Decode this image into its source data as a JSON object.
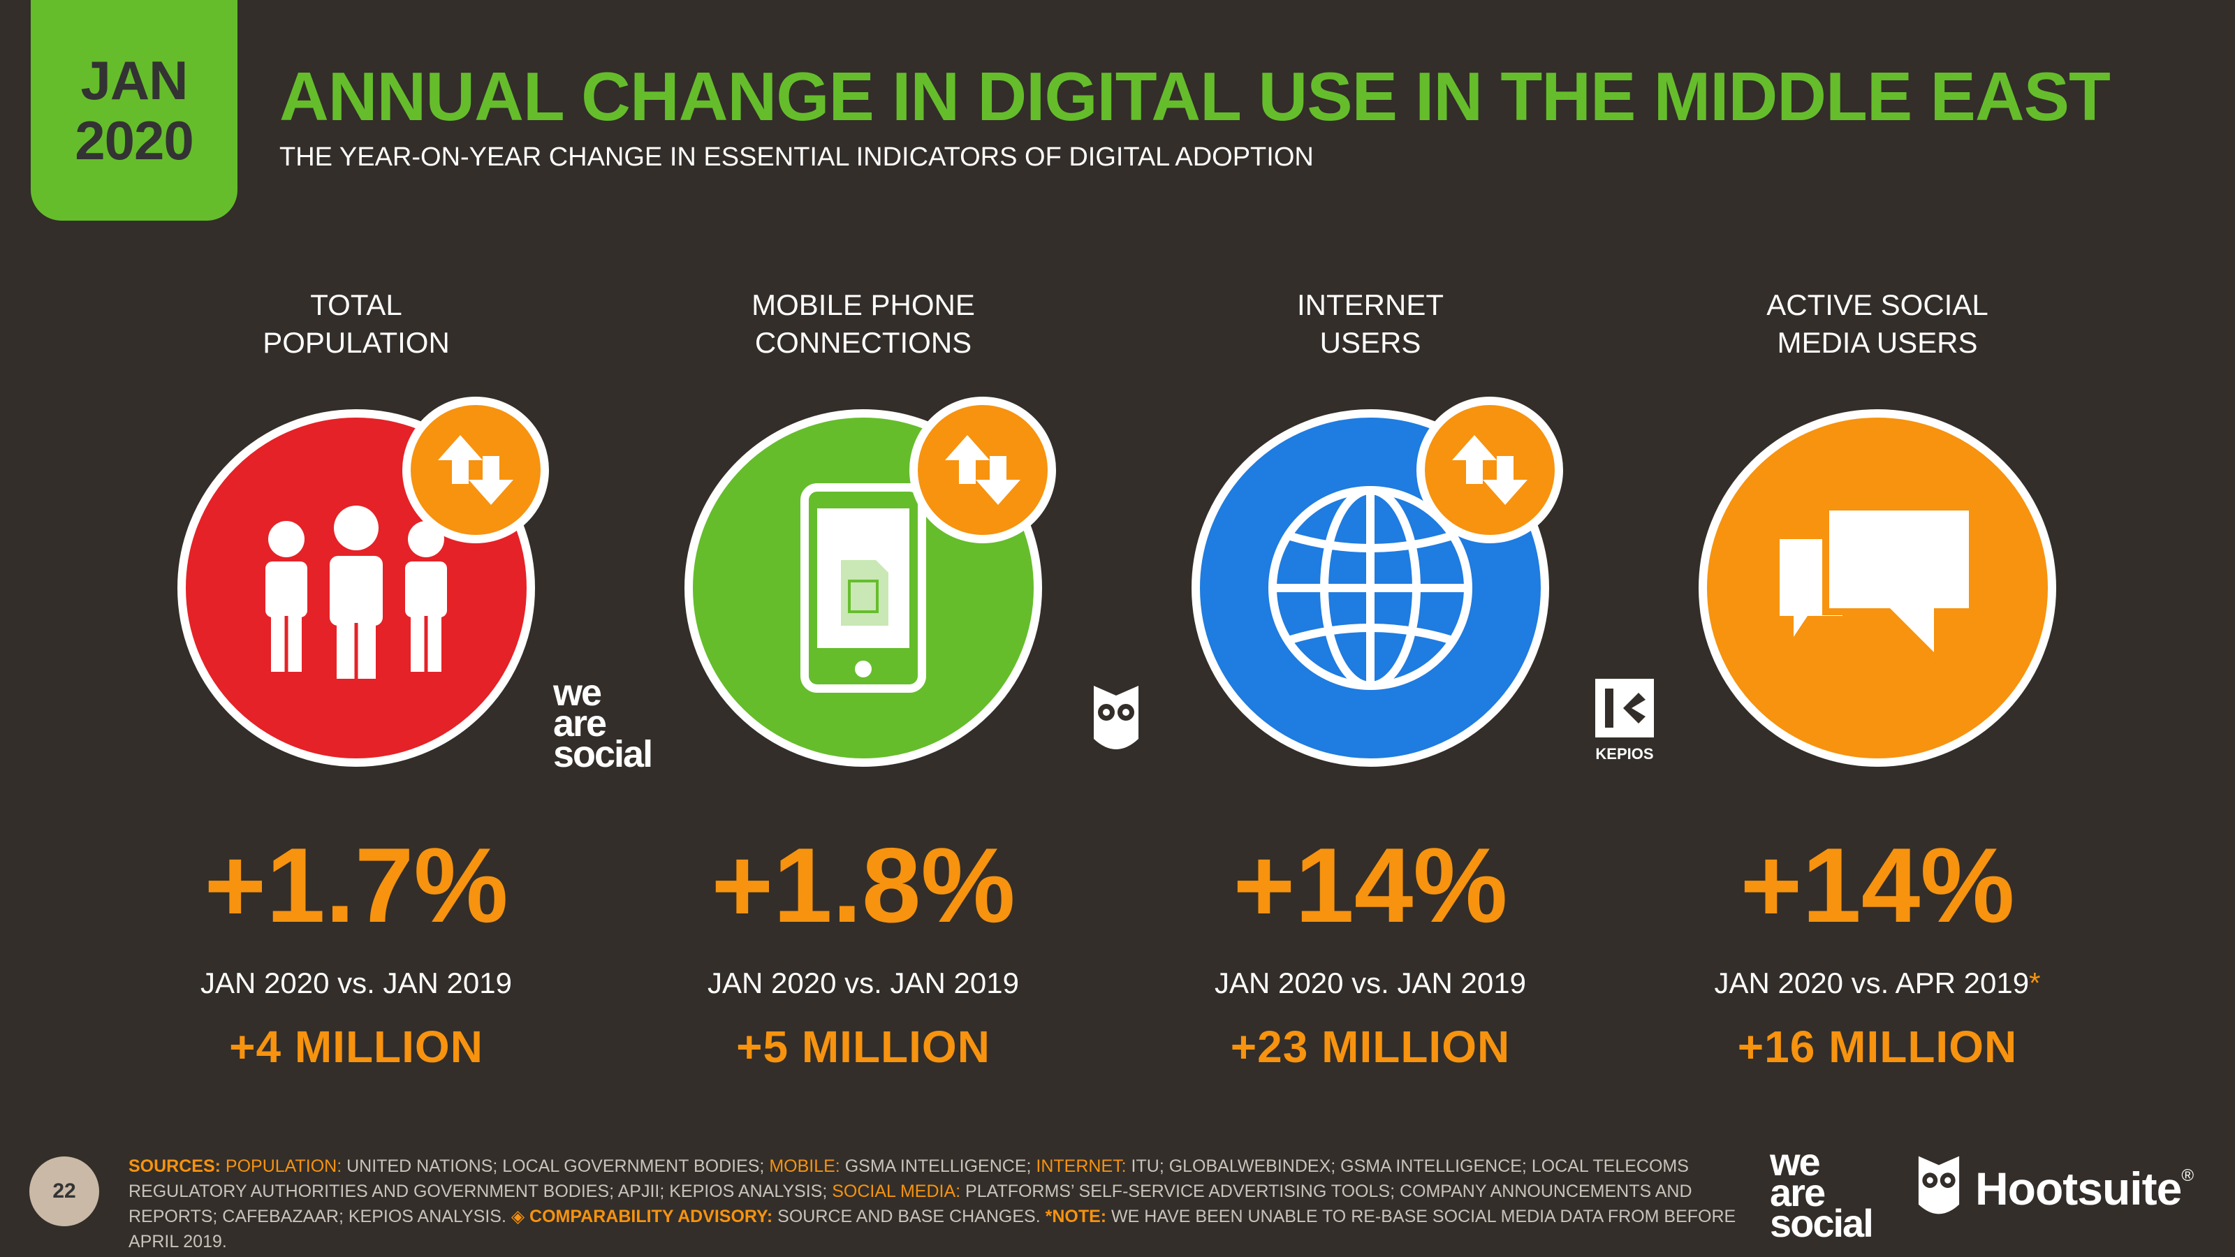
{
  "date_badge": {
    "month": "JAN",
    "year": "2020"
  },
  "title": "ANNUAL CHANGE IN DIGITAL USE IN THE MIDDLE EAST",
  "subtitle": "THE YEAR-ON-YEAR CHANGE IN ESSENTIAL INDICATORS OF DIGITAL ADOPTION",
  "colors": {
    "background": "#332e29",
    "green": "#65bd2b",
    "red": "#e52227",
    "blue": "#1f7ce0",
    "orange": "#f7930f"
  },
  "indicators": [
    {
      "label_line1": "TOTAL",
      "label_line2": "POPULATION",
      "icon": "people-icon",
      "change": "+1.7%",
      "compare": "JAN 2020 vs. JAN 2019",
      "compare_note": "",
      "absolute": "+4 MILLION"
    },
    {
      "label_line1": "MOBILE PHONE",
      "label_line2": "CONNECTIONS",
      "icon": "mobile-phone-icon",
      "change": "+1.8%",
      "compare": "JAN 2020 vs. JAN 2019",
      "compare_note": "",
      "absolute": "+5 MILLION"
    },
    {
      "label_line1": "INTERNET",
      "label_line2": "USERS",
      "icon": "globe-icon",
      "change": "+14%",
      "compare": "JAN 2020 vs. JAN 2019",
      "compare_note": "",
      "absolute": "+23 MILLION"
    },
    {
      "label_line1": "ACTIVE SOCIAL",
      "label_line2": "MEDIA USERS",
      "icon": "speech-bubbles-icon",
      "change": "+14%",
      "compare": "JAN 2020 vs. APR 2019",
      "compare_note": "*",
      "absolute": "+16 MILLION"
    }
  ],
  "logos": {
    "we_are_social": [
      "we",
      "are",
      "social"
    ],
    "kepios": "KEPIOS",
    "hootsuite": "Hootsuite",
    "registered": "®"
  },
  "footer": {
    "page_number": "22",
    "sources_label": "SOURCES:",
    "population_label": "POPULATION:",
    "population_text": "UNITED NATIONS; LOCAL GOVERNMENT BODIES;",
    "mobile_label": "MOBILE:",
    "mobile_text": "GSMA INTELLIGENCE;",
    "internet_label": "INTERNET:",
    "internet_text": "ITU; GLOBALWEBINDEX; GSMA INTELLIGENCE; LOCAL TELECOMS REGULATORY AUTHORITIES AND GOVERNMENT BODIES; APJII; KEPIOS ANALYSIS;",
    "social_label": "SOCIAL MEDIA:",
    "social_text": "PLATFORMS’ SELF-SERVICE ADVERTISING TOOLS; COMPANY ANNOUNCEMENTS AND REPORTS; CAFEBAZAAR; KEPIOS ANALYSIS.",
    "advisory_label": "◈ COMPARABILITY ADVISORY:",
    "advisory_text": "SOURCE AND BASE CHANGES.",
    "note_label": "*NOTE:",
    "note_text": "WE HAVE BEEN UNABLE TO RE-BASE SOCIAL MEDIA DATA FROM BEFORE APRIL 2019."
  }
}
